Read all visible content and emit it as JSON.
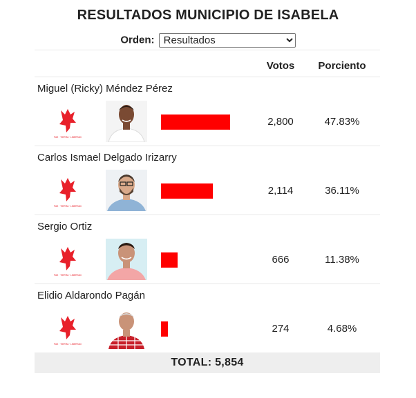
{
  "title": "RESULTADOS MUNICIPIO DE ISABELA",
  "order": {
    "label": "Orden:",
    "selected": "Resultados"
  },
  "headers": {
    "votes": "Votos",
    "percent": "Porciento"
  },
  "colors": {
    "bar": "#ff0000",
    "party_logo": "#e8202a"
  },
  "party_logo_text": "PAZ · TIERRA · LIBERTAD",
  "candidates": [
    {
      "name": "Miguel (Ricky) Méndez Pérez",
      "votes": "2,800",
      "percent": "47.83%",
      "share": 47.83
    },
    {
      "name": "Carlos Ismael Delgado Irizarry",
      "votes": "2,114",
      "percent": "36.11%",
      "share": 36.11
    },
    {
      "name": "Sergio Ortiz",
      "votes": "666",
      "percent": "11.38%",
      "share": 11.38
    },
    {
      "name": "Elidio Aldarondo Pagán",
      "votes": "274",
      "percent": "4.68%",
      "share": 4.68
    }
  ],
  "total": "TOTAL: 5,854"
}
